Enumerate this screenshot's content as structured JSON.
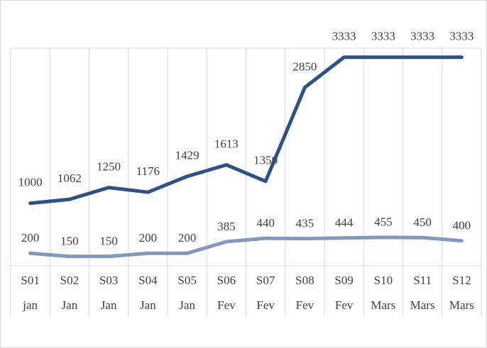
{
  "chart_data": {
    "type": "line",
    "categories": [
      [
        "S01",
        "jan"
      ],
      [
        "S02",
        "Jan"
      ],
      [
        "S03",
        "Jan"
      ],
      [
        "S04",
        "Jan"
      ],
      [
        "S05",
        "Jan"
      ],
      [
        "S06",
        "Fev"
      ],
      [
        "S07",
        "Fev"
      ],
      [
        "S08",
        "Fev"
      ],
      [
        "S09",
        "Fev"
      ],
      [
        "S10",
        "Mars"
      ],
      [
        "S11",
        "Mars"
      ],
      [
        "S12",
        "Mars"
      ]
    ],
    "series": [
      {
        "color": "#2e5283",
        "values": [
          1000,
          1062,
          1250,
          1176,
          1429,
          1613,
          1350,
          2850,
          3333,
          3333,
          3333,
          3333
        ]
      },
      {
        "color": "#8497bf",
        "values": [
          200,
          150,
          150,
          200,
          200,
          385,
          440,
          435,
          444,
          455,
          450,
          400
        ]
      }
    ],
    "ylim": [
      0,
      3500
    ]
  }
}
